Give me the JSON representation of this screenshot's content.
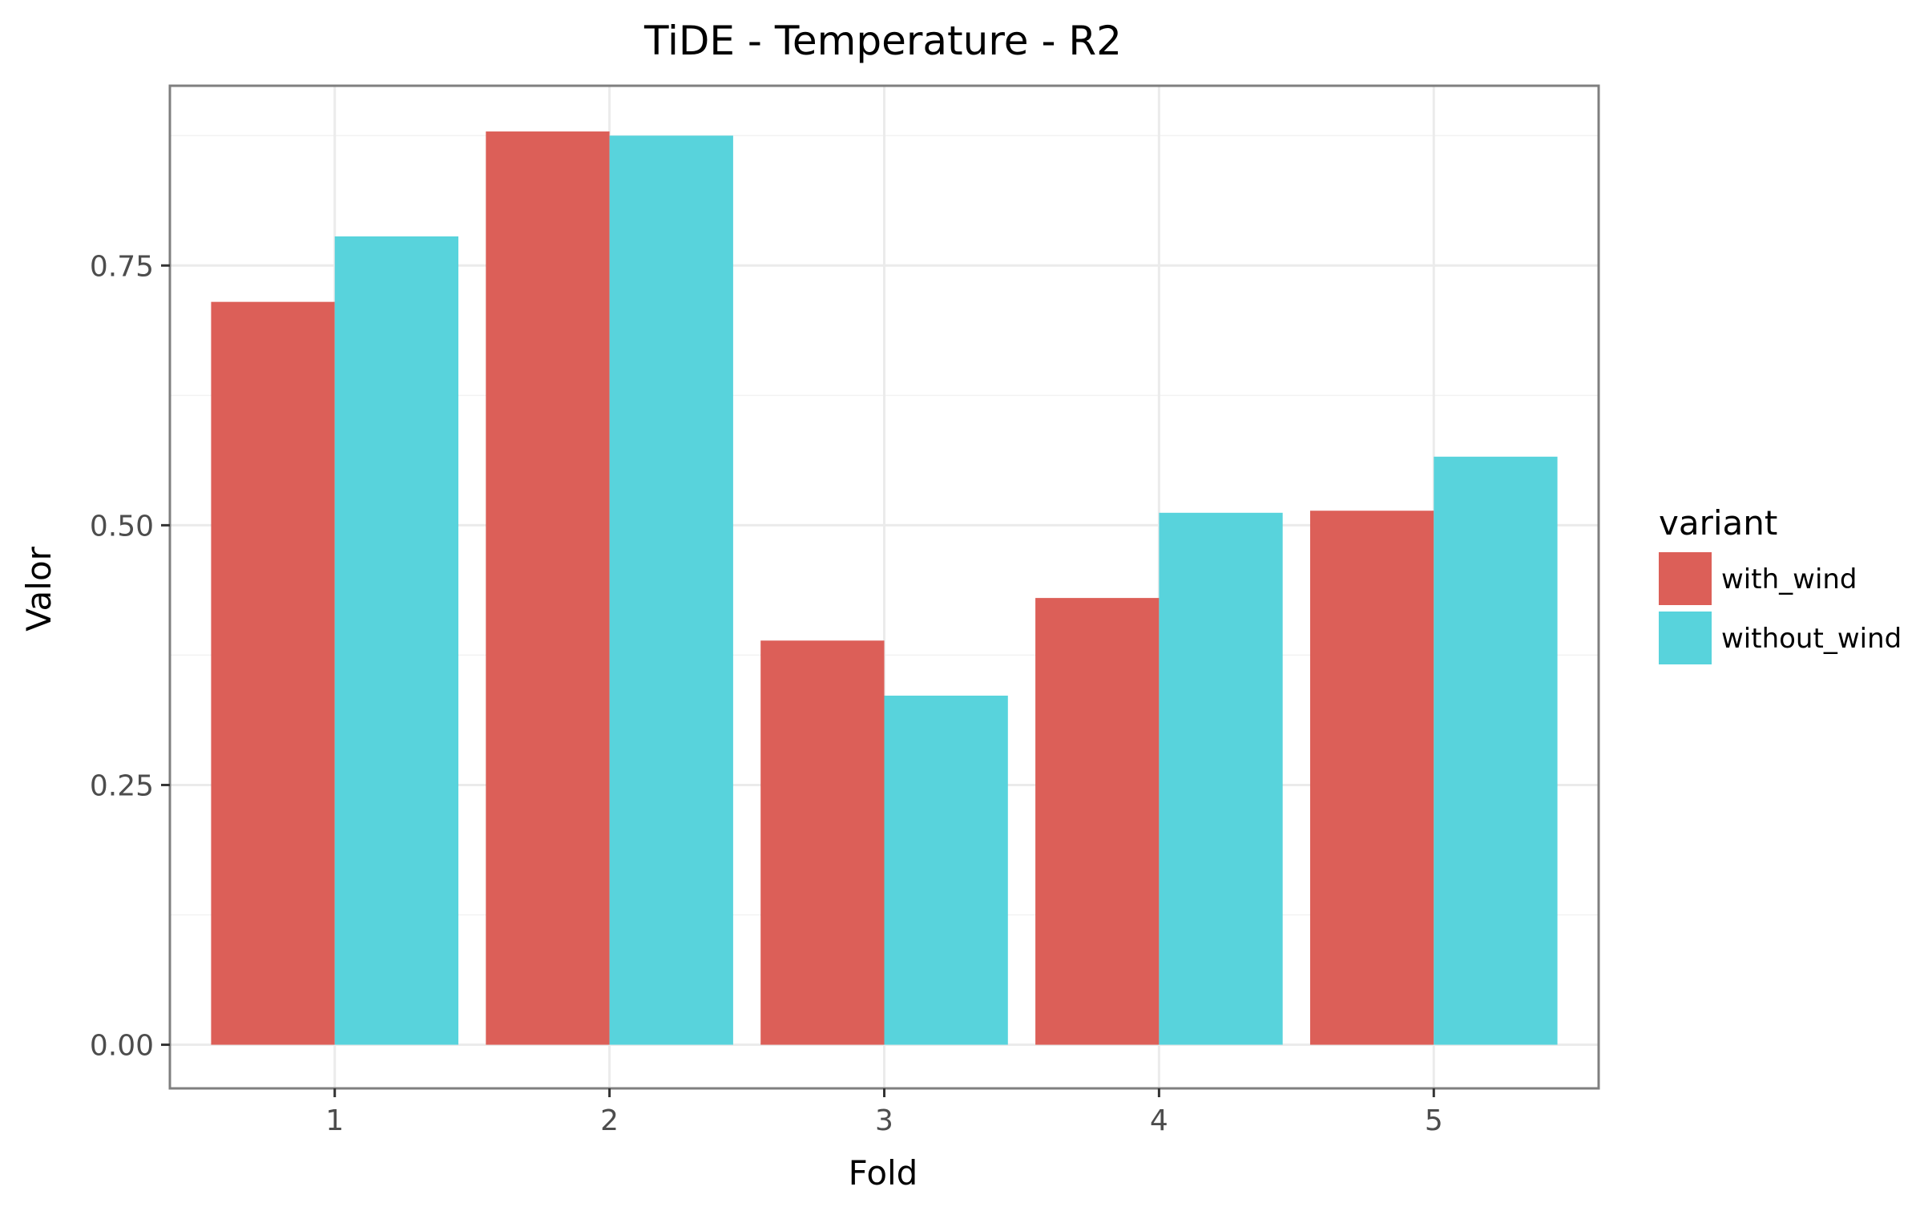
{
  "chart_data": {
    "type": "bar",
    "title": "TiDE - Temperature - R2",
    "xlabel": "Fold",
    "ylabel": "Valor",
    "categories": [
      "1",
      "2",
      "3",
      "4",
      "5"
    ],
    "series": [
      {
        "name": "with_wind",
        "color": "#dc5f58",
        "values": [
          0.715,
          0.879,
          0.389,
          0.43,
          0.514
        ]
      },
      {
        "name": "without_wind",
        "color": "#58d3dc",
        "values": [
          0.778,
          0.875,
          0.336,
          0.512,
          0.566
        ]
      }
    ],
    "y_ticks": [
      0.0,
      0.25,
      0.5,
      0.75
    ],
    "y_tick_labels": [
      "0.00",
      "0.25",
      "0.50",
      "0.75"
    ],
    "ylim": [
      -0.042,
      0.923
    ],
    "grid": true,
    "legend": {
      "title": "variant",
      "position": "right"
    }
  }
}
